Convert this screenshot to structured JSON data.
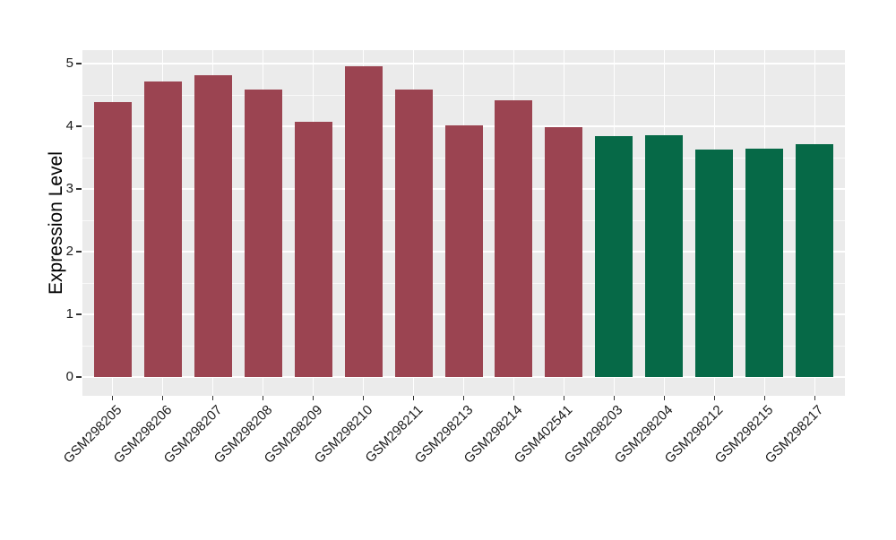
{
  "figure": {
    "background": "#FFFFFF",
    "axis_text_color": "#1A1A1A",
    "tick_mark_color": "#333333"
  },
  "chart_data": {
    "type": "bar",
    "title": "",
    "xlabel": "",
    "ylabel": "Expression Level",
    "ylim": [
      0,
      5.2
    ],
    "yticks": [
      0,
      1,
      2,
      3,
      4,
      5
    ],
    "minor_ticks": [
      0.5,
      1.5,
      2.5,
      3.5,
      4.5
    ],
    "grid": "on",
    "legend": "none",
    "panel_background": "#EBEBEB",
    "gridline_color": "#FFFFFF",
    "categories": [
      "GSM298205",
      "GSM298206",
      "GSM298207",
      "GSM298208",
      "GSM298209",
      "GSM298210",
      "GSM298211",
      "GSM298213",
      "GSM298214",
      "GSM402541",
      "GSM298203",
      "GSM298204",
      "GSM298212",
      "GSM298215",
      "GSM298217"
    ],
    "values": [
      4.39,
      4.71,
      4.81,
      4.59,
      4.07,
      4.96,
      4.59,
      4.01,
      4.41,
      3.99,
      3.84,
      3.86,
      3.63,
      3.64,
      3.71
    ],
    "colors": [
      "#9B4451",
      "#9B4451",
      "#9B4451",
      "#9B4451",
      "#9B4451",
      "#9B4451",
      "#9B4451",
      "#9B4451",
      "#9B4451",
      "#9B4451",
      "#066947",
      "#066947",
      "#066947",
      "#066947",
      "#066947"
    ],
    "groups": [
      {
        "name": "maroon-group",
        "color": "#9B4451",
        "categories": [
          "GSM298205",
          "GSM298206",
          "GSM298207",
          "GSM298208",
          "GSM298209",
          "GSM298210",
          "GSM298211",
          "GSM298213",
          "GSM298214",
          "GSM402541"
        ]
      },
      {
        "name": "green-group",
        "color": "#066947",
        "categories": [
          "GSM298203",
          "GSM298204",
          "GSM298212",
          "GSM298215",
          "GSM298217"
        ]
      }
    ]
  }
}
